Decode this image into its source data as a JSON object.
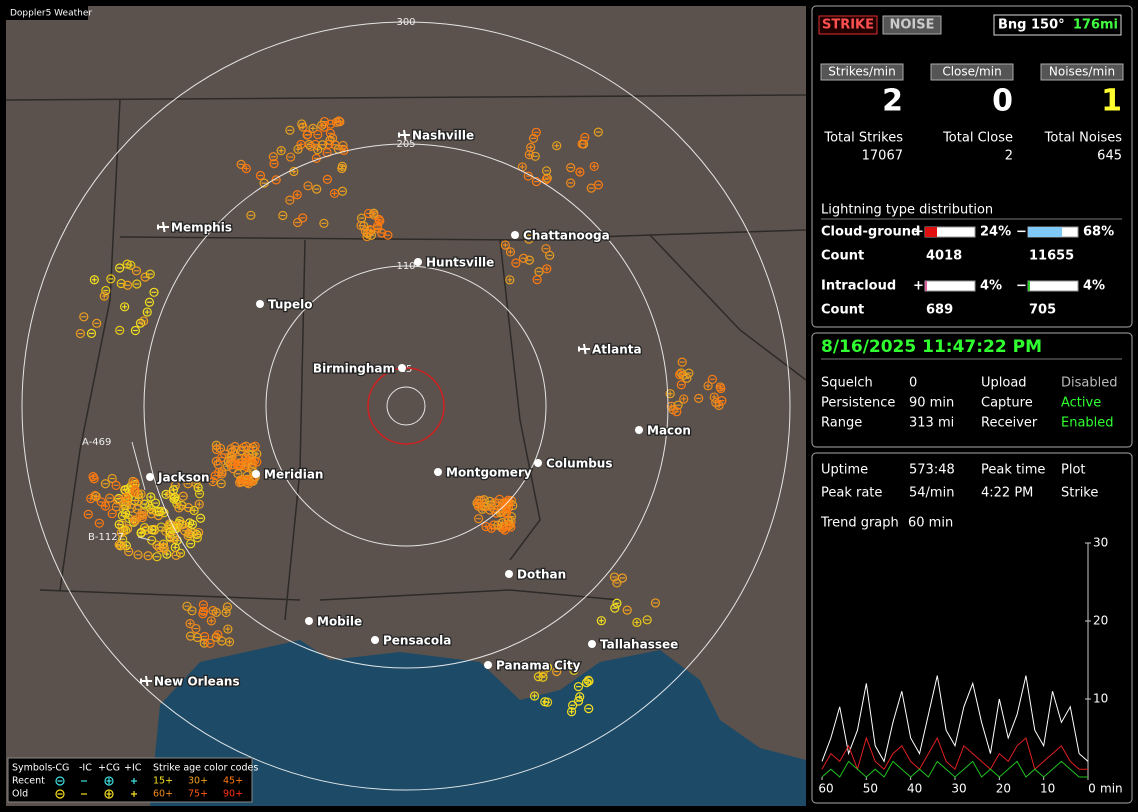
{
  "map": {
    "title": "Doppler5 Weather",
    "range_rings": [
      "300",
      "205",
      "110",
      "15"
    ],
    "cities": [
      {
        "name": "Nashville",
        "airport": true
      },
      {
        "name": "Memphis",
        "airport": true
      },
      {
        "name": "Chattanooga",
        "airport": false
      },
      {
        "name": "Huntsville",
        "airport": false
      },
      {
        "name": "Tupelo",
        "airport": false
      },
      {
        "name": "Birmingham",
        "airport": false
      },
      {
        "name": "Atlanta",
        "airport": true
      },
      {
        "name": "Jackson",
        "airport": false
      },
      {
        "name": "Meridian",
        "airport": false
      },
      {
        "name": "Macon",
        "airport": false
      },
      {
        "name": "Montgomery",
        "airport": false
      },
      {
        "name": "Columbus",
        "airport": false
      },
      {
        "name": "Dothan",
        "airport": false
      },
      {
        "name": "Mobile",
        "airport": false
      },
      {
        "name": "Pensacola",
        "airport": false
      },
      {
        "name": "Tallahassee",
        "airport": false
      },
      {
        "name": "Panama City",
        "airport": false
      },
      {
        "name": "New Orleans",
        "airport": true
      }
    ],
    "storms": [
      "A-469",
      "B-1127"
    ],
    "legend": {
      "symbols_label": "Symbols",
      "symbol_types": [
        "-CG",
        "-IC",
        "+CG",
        "+IC"
      ],
      "age_label": "Strike age color codes",
      "rows": [
        {
          "label": "Recent",
          "ages": [
            "15+",
            "30+",
            "45+"
          ]
        },
        {
          "label": "Old",
          "ages": [
            "60+",
            "75+",
            "90+"
          ]
        }
      ]
    }
  },
  "status": {
    "modes": [
      "STRIKE",
      "NOISE"
    ],
    "bearing": "Bng 150°",
    "distance": "176mi",
    "rates": [
      {
        "label": "Strikes/min",
        "value": 2
      },
      {
        "label": "Close/min",
        "value": 0
      },
      {
        "label": "Noises/min",
        "value": 1
      }
    ],
    "totals": [
      {
        "label": "Total Strikes",
        "value": 17067
      },
      {
        "label": "Total Close",
        "value": 2
      },
      {
        "label": "Total Noises",
        "value": 645
      }
    ],
    "distribution": {
      "title": "Lightning type distribution",
      "count_label": "Count",
      "positive_sign": "+",
      "negative_sign": "−",
      "rows": [
        {
          "label": "Cloud-ground",
          "positive": {
            "value": 24,
            "label": "24%"
          },
          "negative": {
            "value": 68,
            "label": "68%"
          },
          "positive_count": 4018,
          "negative_count": 11655
        },
        {
          "label": "Intracloud",
          "positive": {
            "value": 4,
            "label": "4%"
          },
          "negative": {
            "value": 4,
            "label": "4%"
          },
          "positive_count": 689,
          "negative_count": 705
        }
      ]
    }
  },
  "settings": {
    "datetime": "8/16/2025 11:47:22 PM",
    "rows": [
      [
        "Squelch",
        "0",
        "Upload",
        "Disabled"
      ],
      [
        "Persistence",
        "90 min",
        "Capture",
        "Active"
      ],
      [
        "Range",
        "313 mi",
        "Receiver",
        "Enabled"
      ]
    ]
  },
  "stats": {
    "rows": [
      [
        "Uptime",
        "573:48",
        "Peak time",
        "Plot"
      ],
      [
        "Peak rate",
        "54/min",
        "4:22 PM",
        "Strike"
      ]
    ],
    "trend_label": "Trend graph",
    "trend_window": "60 min"
  },
  "chart_data": {
    "type": "line",
    "x": [
      60,
      58,
      56,
      54,
      52,
      50,
      48,
      46,
      44,
      42,
      40,
      38,
      36,
      34,
      32,
      30,
      28,
      26,
      24,
      22,
      20,
      18,
      16,
      14,
      12,
      10,
      8,
      6,
      4,
      2,
      0
    ],
    "series": [
      {
        "color": "#ffffff",
        "values": [
          2,
          5,
          9,
          3,
          6,
          12,
          4,
          2,
          7,
          11,
          5,
          3,
          8,
          13,
          6,
          4,
          9,
          12,
          7,
          3,
          10,
          5,
          8,
          13,
          6,
          4,
          11,
          7,
          9,
          3,
          2
        ]
      },
      {
        "color": "#e02020",
        "values": [
          1,
          3,
          2,
          4,
          1,
          5,
          2,
          1,
          3,
          4,
          2,
          1,
          3,
          5,
          2,
          1,
          4,
          3,
          2,
          1,
          3,
          2,
          4,
          5,
          1,
          2,
          3,
          4,
          2,
          1,
          1
        ]
      },
      {
        "color": "#20c020",
        "values": [
          0,
          1,
          0,
          2,
          1,
          0,
          1,
          0,
          2,
          1,
          0,
          1,
          0,
          2,
          1,
          0,
          1,
          2,
          0,
          1,
          0,
          1,
          2,
          0,
          1,
          0,
          1,
          2,
          1,
          0,
          0
        ]
      }
    ],
    "xlim": [
      60,
      0
    ],
    "xticks": [
      60,
      50,
      40,
      30,
      20,
      10,
      0
    ],
    "ylim": [
      0,
      30
    ],
    "yticks": [
      10,
      20,
      30
    ],
    "xlabel": "min"
  }
}
